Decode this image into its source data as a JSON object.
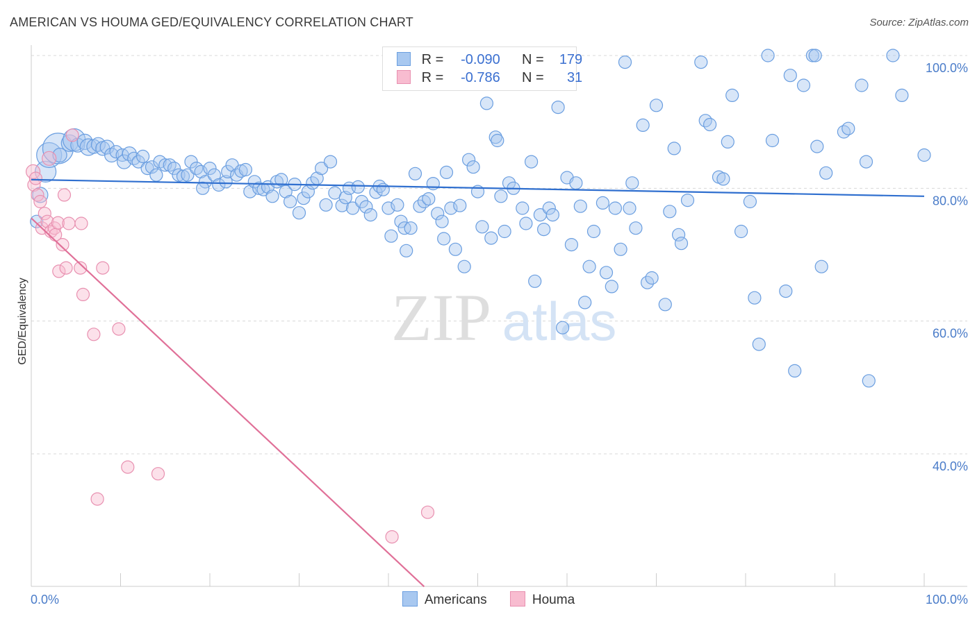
{
  "header": {
    "title": "AMERICAN VS HOUMA GED/EQUIVALENCY CORRELATION CHART",
    "source": "Source: ZipAtlas.com"
  },
  "watermark": {
    "zip": "ZIP",
    "atlas": "atlas"
  },
  "legend": {
    "rows": [
      {
        "r_label": "R =",
        "r_value": "-0.090",
        "n_label": "N =",
        "n_value": "179",
        "color": "#a8c8f0"
      },
      {
        "r_label": "R =",
        "r_value": "-0.786",
        "n_label": "N =",
        "n_value": "31",
        "color": "#f8bcd0"
      }
    ]
  },
  "bottom_legend": [
    {
      "label": "Americans",
      "color": "#a8c8f0"
    },
    {
      "label": "Houma",
      "color": "#f8bcd0"
    }
  ],
  "chart_data": {
    "type": "scatter",
    "title": "AMERICAN VS HOUMA GED/EQUIVALENCY CORRELATION CHART",
    "xlabel": "",
    "ylabel": "GED/Equivalency",
    "xlim": [
      0,
      100
    ],
    "ylim": [
      20,
      102
    ],
    "x_tick_labels": [
      "0.0%",
      "100.0%"
    ],
    "y_ticks": [
      40,
      60,
      80,
      100
    ],
    "y_tick_labels": [
      "40.0%",
      "60.0%",
      "80.0%",
      "100.0%"
    ],
    "grid": "horizontal-dashed",
    "series": [
      {
        "name": "Americans",
        "color": "#6a9ee0",
        "fill": "#a8c8f0",
        "trend": {
          "x": [
            0,
            100
          ],
          "y": [
            81.3,
            78.8
          ],
          "color": "#2f6fcf"
        },
        "points": [
          [
            0.6,
            75.0,
            9
          ],
          [
            1.0,
            79.0,
            11
          ],
          [
            1.6,
            82.5,
            15
          ],
          [
            2.0,
            85.0,
            18
          ],
          [
            3.0,
            86.0,
            22
          ],
          [
            3.2,
            85.0,
            10
          ],
          [
            4.3,
            86.8,
            12
          ],
          [
            4.8,
            87.3,
            16
          ],
          [
            5.2,
            86.5,
            10
          ],
          [
            6.0,
            87.0,
            11
          ],
          [
            6.4,
            86.2,
            12
          ],
          [
            7.0,
            86.3,
            10
          ],
          [
            7.5,
            86.6,
            10
          ],
          [
            8.0,
            86.0,
            10
          ],
          [
            8.5,
            86.2,
            10
          ],
          [
            9.0,
            85.0,
            10
          ],
          [
            9.5,
            85.5,
            9
          ],
          [
            10.2,
            85.0,
            9
          ],
          [
            10.4,
            84.0,
            10
          ],
          [
            11.0,
            85.2,
            10
          ],
          [
            11.5,
            84.5,
            9
          ],
          [
            12.0,
            84.0,
            9
          ],
          [
            12.5,
            84.8,
            9
          ],
          [
            13.0,
            83.0,
            9
          ],
          [
            13.5,
            83.2,
            9
          ],
          [
            14.0,
            82.0,
            9
          ],
          [
            14.4,
            84.0,
            9
          ],
          [
            15.0,
            83.5,
            9
          ],
          [
            15.5,
            83.5,
            9
          ],
          [
            16.0,
            83.0,
            9
          ],
          [
            16.5,
            82.0,
            9
          ],
          [
            17.0,
            81.8,
            9
          ],
          [
            17.5,
            82.0,
            9
          ],
          [
            17.9,
            84.0,
            9
          ],
          [
            18.5,
            83.0,
            9
          ],
          [
            19.0,
            82.5,
            9
          ],
          [
            19.5,
            81.0,
            9
          ],
          [
            19.2,
            80.0,
            9
          ],
          [
            20.0,
            83.0,
            9
          ],
          [
            20.5,
            82.0,
            9
          ],
          [
            21.0,
            80.5,
            9
          ],
          [
            21.8,
            81.0,
            9
          ],
          [
            22.0,
            82.5,
            9
          ],
          [
            22.5,
            83.5,
            9
          ],
          [
            23.0,
            82.0,
            9
          ],
          [
            23.5,
            82.6,
            9
          ],
          [
            24.0,
            82.8,
            9
          ],
          [
            24.5,
            79.5,
            9
          ],
          [
            25.0,
            81.0,
            9
          ],
          [
            25.5,
            80.0,
            9
          ],
          [
            26.0,
            79.8,
            9
          ],
          [
            26.5,
            80.2,
            9
          ],
          [
            27.0,
            78.8,
            9
          ],
          [
            27.5,
            81.0,
            9
          ],
          [
            28.0,
            81.3,
            9
          ],
          [
            28.5,
            79.5,
            9
          ],
          [
            29.0,
            78.0,
            9
          ],
          [
            29.5,
            80.6,
            9
          ],
          [
            30.0,
            76.3,
            9
          ],
          [
            30.5,
            78.5,
            9
          ],
          [
            31.0,
            79.5,
            9
          ],
          [
            31.5,
            80.8,
            9
          ],
          [
            32.0,
            81.5,
            9
          ],
          [
            32.5,
            83.0,
            9
          ],
          [
            33.0,
            77.5,
            9
          ],
          [
            33.5,
            84.0,
            9
          ],
          [
            34.0,
            79.3,
            9
          ],
          [
            34.8,
            77.4,
            9
          ],
          [
            35.2,
            78.6,
            9
          ],
          [
            35.6,
            80.0,
            9
          ],
          [
            36.0,
            77.0,
            9
          ],
          [
            36.6,
            80.2,
            9
          ],
          [
            37.0,
            78.0,
            9
          ],
          [
            37.5,
            77.2,
            9
          ],
          [
            38.0,
            76.0,
            9
          ],
          [
            38.6,
            79.4,
            9
          ],
          [
            39.0,
            80.3,
            9
          ],
          [
            39.4,
            79.8,
            9
          ],
          [
            40.0,
            77.0,
            9
          ],
          [
            40.3,
            72.8,
            9
          ],
          [
            41.0,
            77.5,
            9
          ],
          [
            41.4,
            75.0,
            9
          ],
          [
            41.8,
            74.0,
            9
          ],
          [
            42.0,
            70.6,
            9
          ],
          [
            42.5,
            74.0,
            9
          ],
          [
            43.0,
            82.2,
            9
          ],
          [
            43.5,
            77.3,
            9
          ],
          [
            44.0,
            78.0,
            9
          ],
          [
            44.5,
            78.4,
            9
          ],
          [
            45.0,
            80.7,
            9
          ],
          [
            45.5,
            76.2,
            9
          ],
          [
            46.0,
            75.0,
            9
          ],
          [
            46.5,
            82.4,
            9
          ],
          [
            46.2,
            72.4,
            9
          ],
          [
            47.0,
            77.0,
            9
          ],
          [
            47.5,
            70.8,
            9
          ],
          [
            48.0,
            77.4,
            9
          ],
          [
            48.5,
            68.2,
            9
          ],
          [
            49.0,
            84.3,
            9
          ],
          [
            49.5,
            83.2,
            9
          ],
          [
            50.0,
            79.5,
            9
          ],
          [
            50.5,
            74.2,
            9
          ],
          [
            51.0,
            92.8,
            9
          ],
          [
            51.5,
            72.5,
            9
          ],
          [
            52.0,
            87.7,
            9
          ],
          [
            52.2,
            87.2,
            9
          ],
          [
            52.6,
            78.8,
            9
          ],
          [
            53.0,
            73.5,
            9
          ],
          [
            53.5,
            80.8,
            9
          ],
          [
            54.0,
            80.0,
            9
          ],
          [
            55.0,
            77.0,
            9
          ],
          [
            55.4,
            74.7,
            9
          ],
          [
            56.0,
            84.0,
            9
          ],
          [
            56.4,
            66.0,
            9
          ],
          [
            57.0,
            76.0,
            9
          ],
          [
            57.4,
            73.8,
            9
          ],
          [
            58.0,
            77.0,
            9
          ],
          [
            58.4,
            76.0,
            9
          ],
          [
            59.0,
            92.2,
            9
          ],
          [
            59.5,
            59.0,
            9
          ],
          [
            60.0,
            81.6,
            9
          ],
          [
            60.5,
            71.5,
            9
          ],
          [
            61.0,
            80.8,
            9
          ],
          [
            61.5,
            77.3,
            9
          ],
          [
            62.0,
            62.8,
            9
          ],
          [
            62.5,
            68.2,
            9
          ],
          [
            63.0,
            73.5,
            9
          ],
          [
            64.0,
            77.8,
            9
          ],
          [
            64.4,
            67.3,
            9
          ],
          [
            65.0,
            65.2,
            9
          ],
          [
            65.4,
            77.0,
            9
          ],
          [
            66.0,
            70.8,
            9
          ],
          [
            66.5,
            99.0,
            9
          ],
          [
            67.0,
            77.0,
            9
          ],
          [
            67.3,
            80.8,
            9
          ],
          [
            67.7,
            74.0,
            9
          ],
          [
            68.5,
            89.5,
            9
          ],
          [
            69.0,
            65.8,
            9
          ],
          [
            69.5,
            66.5,
            9
          ],
          [
            70.0,
            92.5,
            9
          ],
          [
            71.0,
            62.5,
            9
          ],
          [
            71.5,
            76.5,
            9
          ],
          [
            72.0,
            86.0,
            9
          ],
          [
            72.5,
            73.0,
            9
          ],
          [
            72.8,
            71.7,
            9
          ],
          [
            73.5,
            78.2,
            9
          ],
          [
            75.0,
            99.0,
            9
          ],
          [
            75.5,
            90.2,
            9
          ],
          [
            76.0,
            89.6,
            9
          ],
          [
            77.0,
            81.7,
            9
          ],
          [
            77.5,
            81.4,
            9
          ],
          [
            78.0,
            87.0,
            9
          ],
          [
            78.5,
            94.0,
            9
          ],
          [
            79.5,
            73.5,
            9
          ],
          [
            80.5,
            78.0,
            9
          ],
          [
            81.0,
            63.5,
            9
          ],
          [
            81.5,
            56.5,
            9
          ],
          [
            82.5,
            100.0,
            9
          ],
          [
            83.0,
            87.2,
            9
          ],
          [
            84.5,
            64.5,
            9
          ],
          [
            85.0,
            97.0,
            9
          ],
          [
            85.5,
            52.5,
            9
          ],
          [
            86.5,
            95.5,
            9
          ],
          [
            87.5,
            100.0,
            9
          ],
          [
            87.8,
            100.0,
            9
          ],
          [
            88.0,
            86.3,
            9
          ],
          [
            88.5,
            68.2,
            9
          ],
          [
            89.0,
            82.3,
            9
          ],
          [
            91.0,
            88.5,
            9
          ],
          [
            91.5,
            89.0,
            9
          ],
          [
            93.0,
            95.5,
            9
          ],
          [
            93.5,
            84.0,
            9
          ],
          [
            93.8,
            51.0,
            9
          ],
          [
            96.5,
            100.0,
            9
          ],
          [
            97.5,
            94.0,
            9
          ],
          [
            100.0,
            85.0,
            9
          ]
        ]
      },
      {
        "name": "Houma",
        "color": "#e890b0",
        "fill": "#f8bcd0",
        "trend": {
          "x": [
            0,
            44
          ],
          "y": [
            75.5,
            20
          ],
          "color": "#e07098"
        },
        "points": [
          [
            0.2,
            82.5,
            10
          ],
          [
            0.3,
            80.5,
            9
          ],
          [
            0.5,
            81.5,
            9
          ],
          [
            0.7,
            79.0,
            9
          ],
          [
            1.0,
            78.0,
            9
          ],
          [
            1.2,
            74.0,
            9
          ],
          [
            1.5,
            76.2,
            9
          ],
          [
            1.8,
            75.0,
            9
          ],
          [
            2.0,
            84.5,
            10
          ],
          [
            2.2,
            73.5,
            9
          ],
          [
            2.6,
            74.0,
            9
          ],
          [
            2.7,
            73.0,
            9
          ],
          [
            3.0,
            74.8,
            9
          ],
          [
            3.1,
            67.5,
            9
          ],
          [
            3.5,
            71.5,
            9
          ],
          [
            3.7,
            79.0,
            9
          ],
          [
            3.9,
            68.0,
            9
          ],
          [
            4.2,
            74.7,
            9
          ],
          [
            4.6,
            88.0,
            9
          ],
          [
            5.5,
            68.0,
            9
          ],
          [
            5.6,
            74.7,
            9
          ],
          [
            5.8,
            64.0,
            9
          ],
          [
            7.0,
            58.0,
            9
          ],
          [
            7.4,
            33.2,
            9
          ],
          [
            8.0,
            68.0,
            9
          ],
          [
            9.8,
            58.8,
            9
          ],
          [
            10.8,
            38.0,
            9
          ],
          [
            14.2,
            37.0,
            9
          ],
          [
            40.4,
            27.5,
            9
          ],
          [
            44.4,
            31.2,
            9
          ]
        ]
      }
    ]
  }
}
